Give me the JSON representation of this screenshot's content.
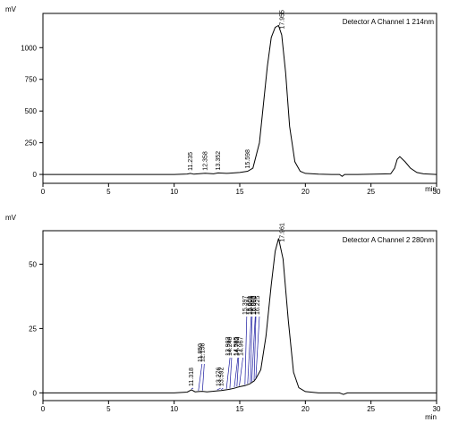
{
  "chart_data": [
    {
      "type": "line",
      "detector_label": "Detector A Channel 1 214nm",
      "ylabel": "mV",
      "xlabel": "min",
      "xlim": [
        0,
        30
      ],
      "ylim": [
        -70,
        1270
      ],
      "x_ticks": [
        0,
        5,
        10,
        15,
        20,
        25,
        30
      ],
      "y_ticks": [
        0,
        250,
        500,
        750,
        1000
      ],
      "series": [
        {
          "x": [
            0,
            10,
            11,
            11.235,
            11.5,
            12.358,
            13,
            13.352,
            14,
            15,
            15.598,
            16,
            16.5,
            16.8,
            17.1,
            17.4,
            17.7,
            17.955,
            18.2,
            18.5,
            18.8,
            19.2,
            19.6,
            20,
            21,
            22,
            22.6,
            22.8,
            23.0,
            24,
            26.5,
            26.8,
            27.0,
            27.2,
            27.6,
            28,
            28.5,
            29,
            30
          ],
          "y": [
            0,
            0,
            3,
            8,
            2,
            10,
            5,
            12,
            8,
            15,
            25,
            50,
            250,
            550,
            850,
            1080,
            1160,
            1175,
            1100,
            800,
            380,
            100,
            25,
            8,
            2,
            0,
            0,
            -15,
            0,
            0,
            5,
            50,
            120,
            140,
            100,
            50,
            15,
            5,
            0
          ]
        }
      ],
      "peak_labels": [
        {
          "x": 11.235,
          "text": "11.235"
        },
        {
          "x": 12.358,
          "text": "12.358"
        },
        {
          "x": 13.352,
          "text": "13.352"
        },
        {
          "x": 15.598,
          "text": "15.598"
        },
        {
          "x": 17.955,
          "text": "17.955"
        }
      ]
    },
    {
      "type": "line",
      "detector_label": "Detector A Channel 2 280nm",
      "ylabel": "mV",
      "xlabel": "min",
      "xlim": [
        0,
        30
      ],
      "ylim": [
        -3,
        63
      ],
      "x_ticks": [
        0,
        5,
        10,
        15,
        20,
        25,
        30
      ],
      "y_ticks": [
        0,
        25,
        50
      ],
      "series": [
        {
          "x": [
            0,
            10,
            11,
            11.318,
            11.6,
            11.85,
            12.158,
            12.5,
            13.276,
            13.592,
            13.983,
            14.246,
            14.585,
            14.783,
            14.967,
            15.397,
            15.601,
            15.808,
            15.908,
            16.092,
            16.225,
            16.6,
            17,
            17.4,
            17.7,
            17.961,
            18.3,
            18.7,
            19.1,
            19.5,
            20,
            21,
            22.6,
            22.9,
            23.2,
            24,
            30
          ],
          "y": [
            0,
            0,
            0.3,
            1.2,
            0.4,
            0.5,
            0.6,
            0.4,
            0.8,
            0.9,
            1.2,
            1.4,
            1.8,
            2.1,
            2.4,
            2.8,
            3.2,
            3.6,
            4.0,
            4.6,
            5.5,
            9,
            22,
            42,
            55,
            60,
            52,
            28,
            8,
            2,
            0.5,
            0,
            0,
            -0.6,
            0,
            0,
            0
          ]
        }
      ],
      "peak_labels": [
        {
          "x": 11.318,
          "text": "11.318"
        },
        {
          "x": 11.85,
          "text": "11.850"
        },
        {
          "x": 12.158,
          "text": "12.158"
        },
        {
          "x": 13.276,
          "text": "13.276"
        },
        {
          "x": 13.592,
          "text": "13.592"
        },
        {
          "x": 13.983,
          "text": "13.983"
        },
        {
          "x": 14.246,
          "text": "14.246"
        },
        {
          "x": 14.585,
          "text": "14.585"
        },
        {
          "x": 14.783,
          "text": "14.783"
        },
        {
          "x": 14.967,
          "text": "14.967"
        },
        {
          "x": 15.397,
          "text": "15.397"
        },
        {
          "x": 15.601,
          "text": "15.601"
        },
        {
          "x": 15.808,
          "text": "15.808"
        },
        {
          "x": 15.908,
          "text": "15.908"
        },
        {
          "x": 16.092,
          "text": "16.092"
        },
        {
          "x": 16.225,
          "text": "16.225"
        },
        {
          "x": 17.961,
          "text": "17.961"
        }
      ]
    }
  ]
}
